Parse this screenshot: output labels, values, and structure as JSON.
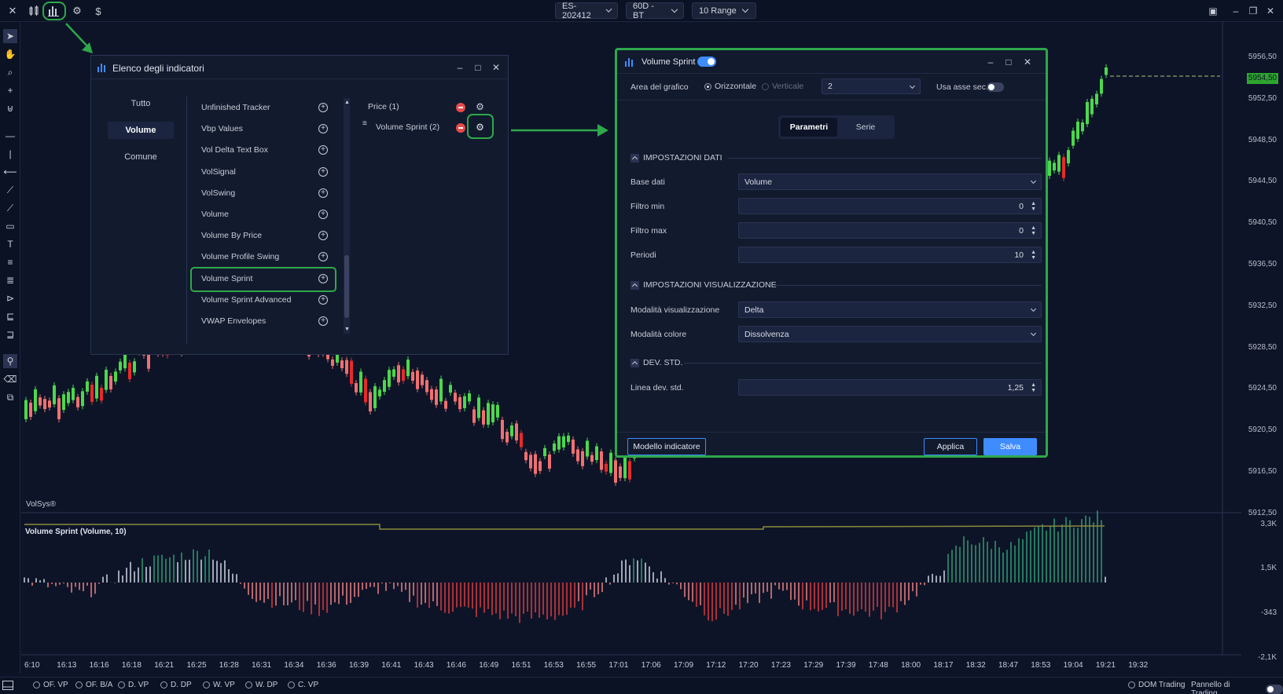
{
  "topbar": {
    "symbol": "ES-202412",
    "period": "60D - BT",
    "range": "10 Range"
  },
  "colors": {
    "accent": "#3f8cff",
    "highlight": "#2ea84a",
    "bull": "#4cd84c",
    "bear": "#f07070",
    "background": "#0d1428"
  },
  "icons": [
    "close-icon",
    "candles-icon",
    "indicators-icon",
    "settings-icon",
    "dollar-icon"
  ],
  "price_axis": [
    "5956,50",
    "5952,50",
    "5948,50",
    "5944,50",
    "5940,50",
    "5936,50",
    "5932,50",
    "5928,50",
    "5924,50",
    "5920,50",
    "5916,50",
    "5912,50"
  ],
  "price_current": "5954,50",
  "time_axis": [
    "6:10",
    "16:13",
    "16:16",
    "16:18",
    "16:21",
    "16:25",
    "16:28",
    "16:31",
    "16:34",
    "16:36",
    "16:39",
    "16:41",
    "16:43",
    "16:46",
    "16:49",
    "16:51",
    "16:53",
    "16:55",
    "17:01",
    "17:06",
    "17:09",
    "17:12",
    "17:20",
    "17:23",
    "17:29",
    "17:39",
    "17:48",
    "18:00",
    "18:17",
    "18:32",
    "18:47",
    "18:53",
    "19:04",
    "19:21",
    "19:32"
  ],
  "watermark": "VolSys®",
  "indicator_panel": {
    "title": "Volume Sprint (Volume, 10)",
    "axis": [
      "3,3K",
      "1,5K",
      "-343",
      "-2,1K"
    ]
  },
  "bottombar": {
    "items": [
      "OF. VP",
      "OF. B/A",
      "D. VP",
      "D. DP",
      "W. VP",
      "W. DP",
      "C. VP"
    ],
    "dom": "DOM Trading",
    "panel": "Pannello di Trading"
  },
  "indicator_list": {
    "title": "Elenco degli indicatori",
    "categories": [
      "Tutto",
      "Volume",
      "Comune"
    ],
    "items": [
      "Unfinished Tracker",
      "Vbp Values",
      "Vol Delta Text Box",
      "VolSignal",
      "VolSwing",
      "Volume",
      "Volume By Price",
      "Volume Profile Swing",
      "Volume Sprint",
      "Volume Sprint Advanced",
      "VWAP Envelopes"
    ],
    "active": [
      "Price (1)",
      "Volume Sprint (2)"
    ]
  },
  "settings": {
    "title": "Volume Sprint",
    "area_label": "Area del grafico",
    "orient_h": "Orizzontale",
    "orient_v": "Verticale",
    "area_value": "2",
    "use_sec_axis": "Usa asse sec.",
    "tabs": [
      "Parametri",
      "Serie"
    ],
    "section_data": "IMPOSTAZIONI DATI",
    "base_label": "Base dati",
    "base_value": "Volume",
    "fmin_label": "Filtro min",
    "fmin_value": "0",
    "fmax_label": "Filtro max",
    "fmax_value": "0",
    "period_label": "Periodi",
    "period_value": "10",
    "section_vis": "IMPOSTAZIONI VISUALIZZAZIONE",
    "vis_mode_label": "Modalità visualizzazione",
    "vis_mode_value": "Delta",
    "color_mode_label": "Modalità colore",
    "color_mode_value": "Dissolvenza",
    "section_std": "DEV. STD.",
    "std_label": "Linea dev. std.",
    "std_value": "1,25",
    "template_btn": "Modello indicatore",
    "apply_btn": "Applica",
    "save_btn": "Salva"
  }
}
